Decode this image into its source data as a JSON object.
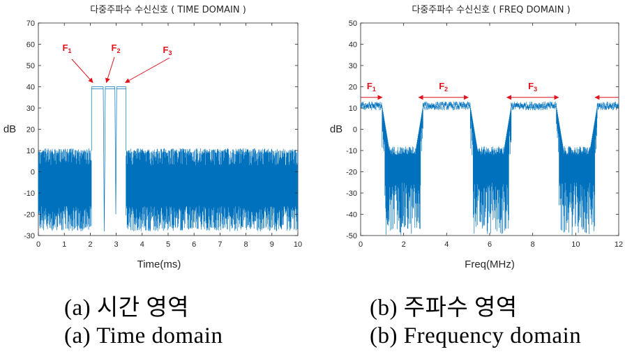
{
  "colors": {
    "signal": "#0072bd",
    "annotation": "#e0121b",
    "axis": "#262626"
  },
  "chart_data": [
    {
      "type": "line",
      "title": "다중주파수 수신신호 ( TIME DOMAIN )",
      "xlabel": "Time(ms)",
      "ylabel": "dB",
      "xlim": [
        0,
        10
      ],
      "ylim": [
        -30,
        70
      ],
      "xticks": [
        "0",
        "1",
        "2",
        "3",
        "4",
        "5",
        "6",
        "7",
        "8",
        "9",
        "10"
      ],
      "yticks": [
        "-30",
        "-20",
        "-10",
        "0",
        "10",
        "20",
        "30",
        "40",
        "50",
        "60",
        "70"
      ],
      "grid": false,
      "series": [
        {
          "noise_band": [
            -30,
            11
          ],
          "segments": [
            {
              "x": [
                0,
                2.05
              ],
              "kind": "noise",
              "range": [
                -28,
                11
              ]
            },
            {
              "x": [
                2.05,
                2.5
              ],
              "kind": "flat",
              "level": 40
            },
            {
              "x": [
                2.5,
                2.58
              ],
              "kind": "dip",
              "level": -28
            },
            {
              "x": [
                2.58,
                2.95
              ],
              "kind": "flat",
              "level": 40
            },
            {
              "x": [
                2.95,
                3.02
              ],
              "kind": "dip",
              "level": -20
            },
            {
              "x": [
                3.02,
                3.38
              ],
              "kind": "flat",
              "level": 40
            },
            {
              "x": [
                3.38,
                10
              ],
              "kind": "noise",
              "range": [
                -28,
                11
              ]
            }
          ]
        }
      ],
      "annotations": [
        {
          "label": "F",
          "sub": "1",
          "x": 2.1,
          "y": 40
        },
        {
          "label": "F",
          "sub": "2",
          "x": 2.62,
          "y": 40
        },
        {
          "label": "F",
          "sub": "3",
          "x": 3.35,
          "y": 40
        }
      ]
    },
    {
      "type": "line",
      "title": "다중주파수 수신신호 ( FREQ DOMAIN )",
      "xlabel": "Freq(MHz)",
      "ylabel": "dB",
      "xlim": [
        0,
        12
      ],
      "ylim": [
        -50,
        50
      ],
      "xticks": [
        "0",
        "2",
        "4",
        "6",
        "8",
        "10",
        "12"
      ],
      "yticks": [
        "-50",
        "-40",
        "-30",
        "-20",
        "-10",
        "0",
        "10",
        "20",
        "30",
        "40",
        "50"
      ],
      "grid": false,
      "series": [
        {
          "bands": [
            {
              "x": [
                0,
                1.0
              ],
              "level": 11
            },
            {
              "x": [
                2.9,
                5.1
              ],
              "level": 11
            },
            {
              "x": [
                7.0,
                9.1
              ],
              "level": 11
            },
            {
              "x": [
                11.0,
                12
              ],
              "level": 11
            }
          ],
          "gap_floor": -50,
          "gap_top": -10
        }
      ],
      "annotations": [
        {
          "label": "F",
          "sub": "1",
          "x1": 0,
          "x2": 1.0,
          "y": 15
        },
        {
          "label": "F",
          "sub": "2",
          "x1": 2.7,
          "x2": 5.0,
          "y": 15
        },
        {
          "label": "F",
          "sub": "3",
          "x1": 6.8,
          "x2": 9.2,
          "y": 15
        },
        {
          "label": "",
          "sub": "",
          "x1": 10.9,
          "x2": 12,
          "y": 15
        }
      ]
    }
  ],
  "captions": {
    "a_korean": "(a)  시간  영역",
    "a_english": "(a)  Time  domain",
    "b_korean": "(b)  주파수  영역",
    "b_english": "(b)  Frequency  domain"
  }
}
